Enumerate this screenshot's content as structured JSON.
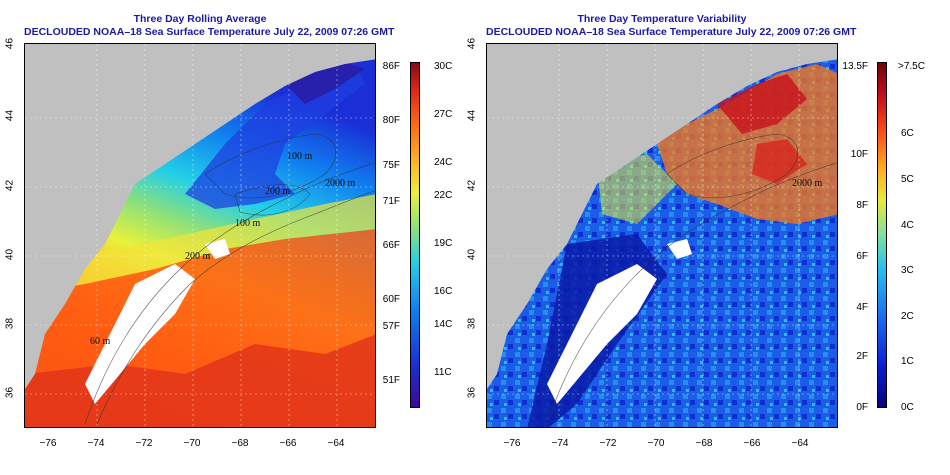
{
  "left": {
    "title_line1": "Three Day Rolling Average",
    "title_line2": "DECLOUDED NOAA–18 Sea Surface Temperature July 22, 2009 07:26 GMT",
    "colorbar_f": [
      "86F",
      "80F",
      "75F",
      "71F",
      "66F",
      "60F",
      "57F",
      "51F"
    ],
    "colorbar_c": [
      "30C",
      "27C",
      "24C",
      "22C",
      "19C",
      "16C",
      "14C",
      "11C"
    ],
    "contour_labels": [
      "2000 m",
      "200 m",
      "100 m",
      "200 m",
      "100 m",
      "60 m"
    ]
  },
  "right": {
    "title_line1": "Three Day Temperature Variability",
    "title_line2": "DECLOUDED NOAA–18 Sea Surface Temperature July 22, 2009 07:26 GMT",
    "colorbar_f": [
      "13.5F",
      "10F",
      "8F",
      "6F",
      "4F",
      "2F",
      "0F"
    ],
    "colorbar_c": [
      ">7.5C",
      "6C",
      "5C",
      "4C",
      "3C",
      "2C",
      "1C",
      "0C"
    ],
    "contour_labels": [
      "2000 m"
    ]
  },
  "axes": {
    "lon_ticks": [
      "−76",
      "−74",
      "−72",
      "−70",
      "−68",
      "−66",
      "−64"
    ],
    "lat_ticks": [
      "46",
      "44",
      "42",
      "40",
      "38",
      "36"
    ]
  },
  "colors": {
    "land": "#c0c0c0",
    "title": "#1a1aa6",
    "sst_scale": [
      "#3b0a96",
      "#1a2fd6",
      "#0f7ff0",
      "#23d0e8",
      "#8de07a",
      "#e9f23b",
      "#ffb020",
      "#ff6a14",
      "#e0261a",
      "#8a0a12"
    ],
    "var_scale": [
      "#06047a",
      "#0a1ed8",
      "#1a6cf0",
      "#25c0f0",
      "#7fe0a0",
      "#e6ea3a",
      "#ffa520",
      "#ff4c16",
      "#c8101a",
      "#6e0508"
    ]
  }
}
